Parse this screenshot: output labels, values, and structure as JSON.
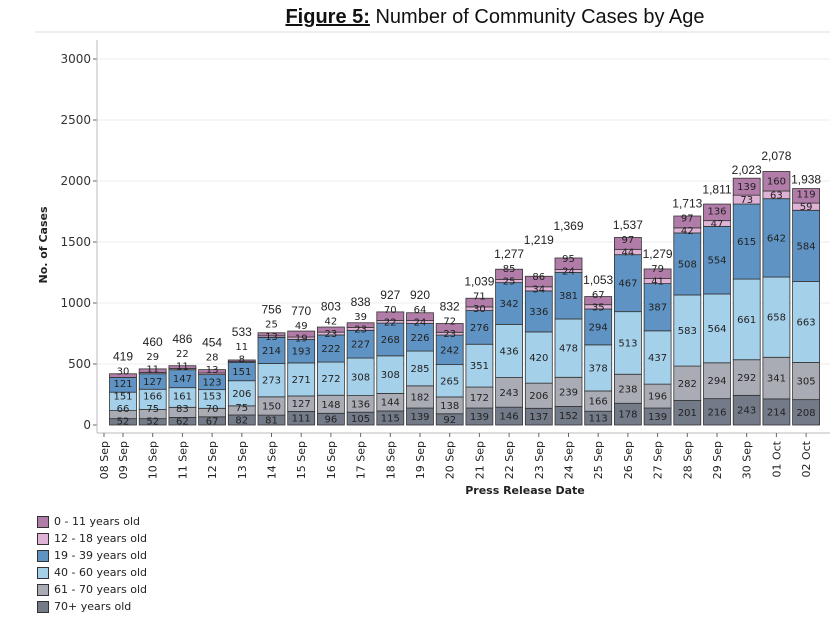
{
  "chart_data": {
    "type": "bar",
    "stacked": true,
    "title_prefix": "Figure 5:",
    "title": "Number of Community Cases by Age",
    "xlabel": "Press Release Date",
    "ylabel": "No. of Cases",
    "ylim": [
      0,
      3000
    ],
    "yticks": [
      "0",
      "500",
      "1000",
      "1500",
      "2000",
      "2500",
      "3000"
    ],
    "ytick_values": [
      0,
      500,
      1000,
      1500,
      2000,
      2500,
      3000
    ],
    "xtick_labels": [
      "08 Sep",
      "09 Sep",
      "10 Sep",
      "11 Sep",
      "12 Sep",
      "13 Sep",
      "14 Sep",
      "15 Sep",
      "16 Sep",
      "17 Sep",
      "18 Sep",
      "19 Sep",
      "20 Sep",
      "21 Sep",
      "22 Sep",
      "23 Sep",
      "24 Sep",
      "25 Sep",
      "26 Sep",
      "27 Sep",
      "28 Sep",
      "29 Sep",
      "30 Sep",
      "01 Oct",
      "02 Oct"
    ],
    "categories": [
      "09 Sep",
      "10 Sep",
      "11 Sep",
      "12 Sep",
      "13 Sep",
      "14 Sep",
      "15 Sep",
      "16 Sep",
      "17 Sep",
      "18 Sep",
      "19 Sep",
      "20 Sep",
      "21 Sep",
      "22 Sep",
      "23 Sep",
      "24 Sep",
      "25 Sep",
      "26 Sep",
      "27 Sep",
      "28 Sep",
      "29 Sep",
      "30 Sep",
      "01 Oct",
      "02 Oct"
    ],
    "totals": [
      "419",
      "460",
      "486",
      "454",
      "533",
      "756",
      "770",
      "803",
      "838",
      "927",
      "920",
      "832",
      "1,039",
      "1,277",
      "1,219",
      "1,369",
      "1,053",
      "1,537",
      "1,279",
      "1,713",
      "1,811",
      "2,023",
      "2,078",
      "1,938"
    ],
    "series": [
      {
        "name": "70+ years old",
        "color": "#737a88",
        "values": [
          52,
          52,
          62,
          67,
          82,
          81,
          111,
          96,
          105,
          115,
          139,
          92,
          139,
          146,
          137,
          152,
          113,
          178,
          139,
          201,
          216,
          243,
          214,
          208
        ]
      },
      {
        "name": "61 - 70 years old",
        "color": "#a9acb5",
        "values": [
          66,
          75,
          83,
          70,
          75,
          150,
          127,
          148,
          136,
          144,
          182,
          138,
          172,
          243,
          206,
          239,
          166,
          238,
          196,
          282,
          294,
          292,
          341,
          305
        ]
      },
      {
        "name": "40 - 60 years old",
        "color": "#a5d0ea",
        "values": [
          151,
          166,
          161,
          153,
          206,
          273,
          271,
          272,
          308,
          308,
          285,
          265,
          351,
          436,
          420,
          478,
          378,
          513,
          437,
          583,
          564,
          661,
          658,
          663
        ]
      },
      {
        "name": "19 - 39 years old",
        "color": "#5f93c3",
        "values": [
          121,
          127,
          147,
          123,
          151,
          214,
          193,
          222,
          227,
          268,
          226,
          242,
          276,
          342,
          336,
          381,
          294,
          467,
          387,
          508,
          554,
          615,
          642,
          584
        ]
      },
      {
        "name": "12 - 18 years old",
        "color": "#dfb2d6",
        "values": [
          0,
          11,
          11,
          13,
          8,
          13,
          19,
          23,
          23,
          22,
          24,
          23,
          30,
          25,
          34,
          24,
          35,
          44,
          41,
          42,
          47,
          73,
          63,
          59
        ]
      },
      {
        "name": "0 - 11 years old",
        "color": "#b27ca9",
        "values": [
          30,
          29,
          22,
          28,
          11,
          25,
          49,
          42,
          39,
          70,
          64,
          72,
          71,
          85,
          86,
          95,
          67,
          97,
          79,
          97,
          136,
          139,
          160,
          119
        ]
      }
    ],
    "legend": [
      "0 - 11 years old",
      "12 - 18 years old",
      "19 - 39 years old",
      "40 - 60 years old",
      "61 - 70 years old",
      "70+ years old"
    ],
    "legend_colors": [
      "#b27ca9",
      "#dfb2d6",
      "#5f93c3",
      "#a5d0ea",
      "#a9acb5",
      "#737a88"
    ],
    "legend_placement": "bottom-left",
    "grid": true
  }
}
